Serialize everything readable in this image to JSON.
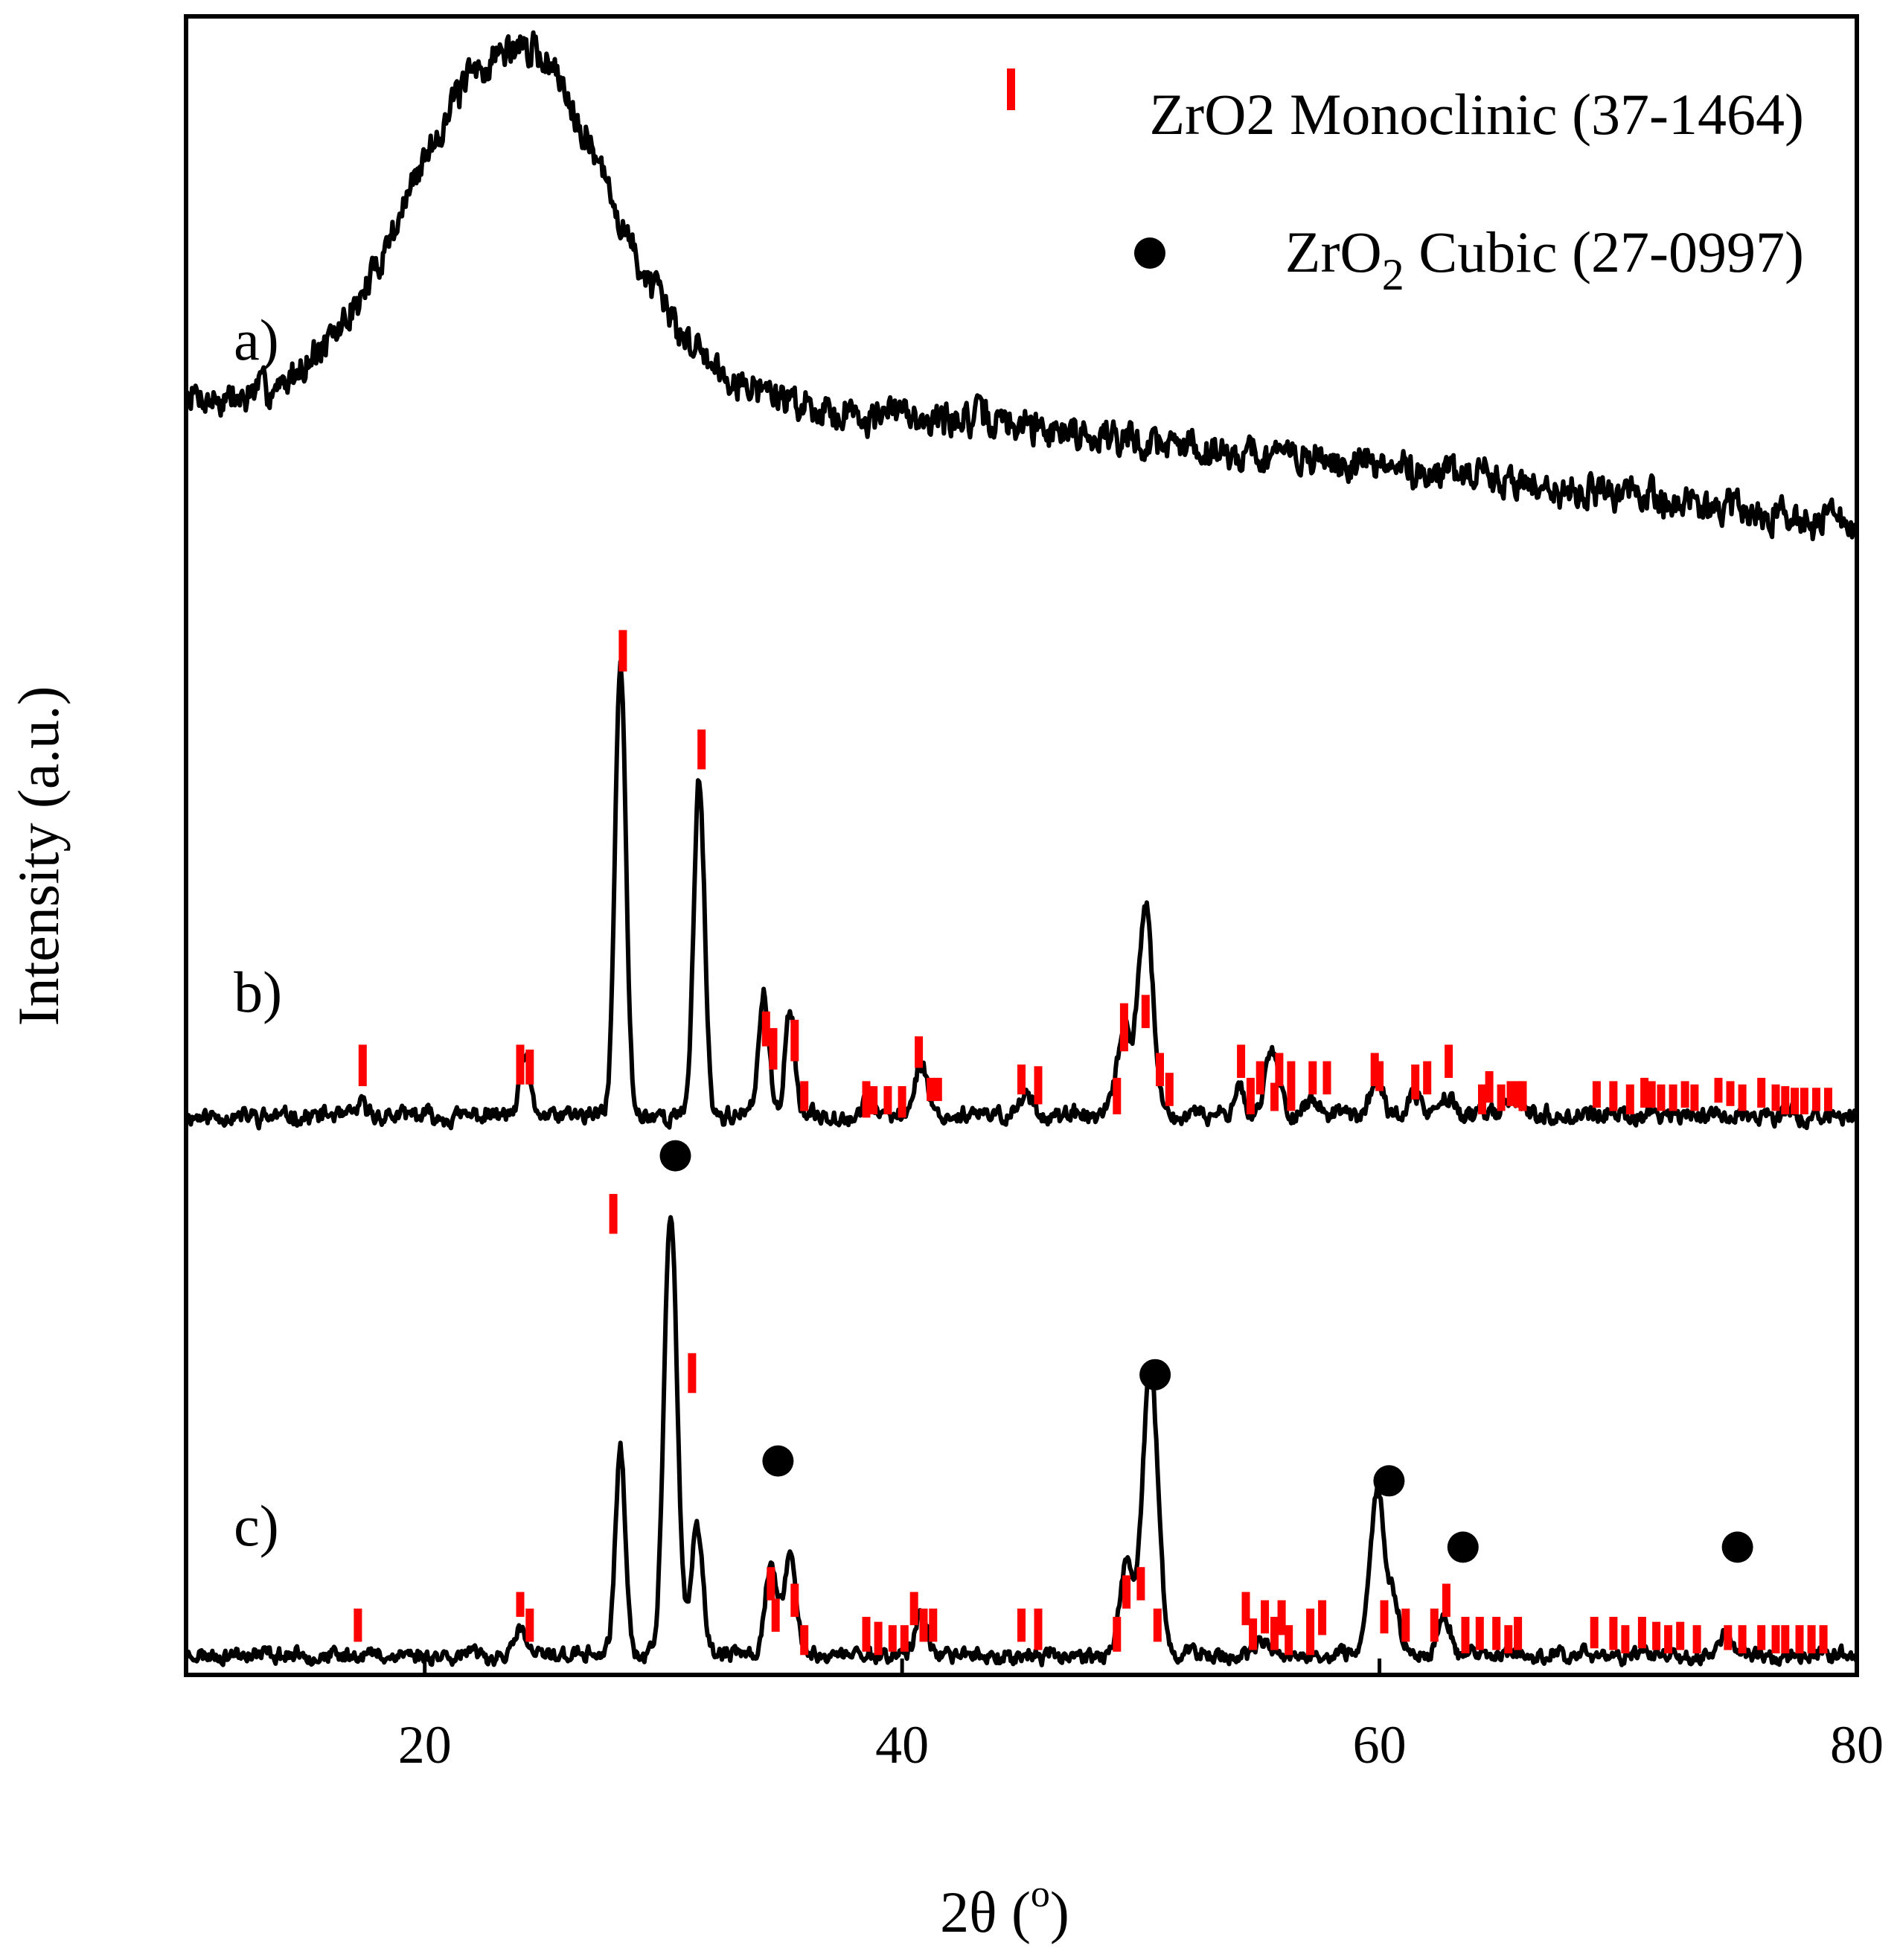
{
  "chart_data": {
    "type": "line",
    "title": "",
    "xlabel": "2θ (",
    "xlabel_sup": "o",
    "xlabel_close": ")",
    "ylabel": "Intensity (a.u.)",
    "xlim": [
      10,
      80
    ],
    "ylim": [
      0,
      100
    ],
    "xticks": [
      20,
      40,
      60,
      80
    ],
    "grid": false,
    "legend_position": "top-right",
    "legend": [
      {
        "marker": "bar",
        "color": "#ff0000",
        "label": "ZrO2 Monoclinic (37-1464)"
      },
      {
        "marker": "dot",
        "color": "#000000",
        "label_main": "ZrO",
        "label_sub": "2",
        "label_rest": " Cubic (27-0997)"
      }
    ],
    "series": [
      {
        "name": "a)",
        "baseline": 69.2,
        "noise_amp": 1.1,
        "seed": 7,
        "background": [
          [
            10,
            77
          ],
          [
            12,
            76.8
          ],
          [
            14,
            77.9
          ],
          [
            16,
            80.2
          ],
          [
            17,
            82.3
          ],
          [
            18,
            85
          ],
          [
            19,
            88.2
          ],
          [
            20,
            91.6
          ],
          [
            21,
            94.4
          ],
          [
            22,
            96.4
          ],
          [
            23,
            97.7
          ],
          [
            24,
            98.2
          ],
          [
            25,
            97.6
          ],
          [
            26,
            95.5
          ],
          [
            27,
            92.1
          ],
          [
            28,
            88.4
          ],
          [
            29,
            85.1
          ],
          [
            30,
            82.2
          ],
          [
            32,
            79.2
          ],
          [
            34,
            77.5
          ],
          [
            36,
            76.6
          ],
          [
            38,
            76.1
          ],
          [
            40,
            75.9
          ],
          [
            42,
            75.8
          ],
          [
            44,
            75.6
          ],
          [
            46,
            75.3
          ],
          [
            48,
            74.8
          ],
          [
            50,
            74.4
          ],
          [
            52,
            74.1
          ],
          [
            55,
            73.6
          ],
          [
            60,
            72.9
          ],
          [
            65,
            72.1
          ],
          [
            70,
            71.2
          ],
          [
            75,
            70.3
          ],
          [
            80,
            69.4
          ]
        ],
        "peaks": []
      },
      {
        "name": "b)",
        "baseline": 33.7,
        "noise_amp": 0.55,
        "seed": 11,
        "background": [
          [
            10,
            33.7
          ],
          [
            80,
            33.7
          ]
        ],
        "peaks": [
          {
            "center": 17.4,
            "height": 0.6,
            "width": 0.3
          },
          {
            "center": 24.2,
            "height": 3.6,
            "width": 0.28
          },
          {
            "center": 28.2,
            "height": 27.2,
            "width": 0.32
          },
          {
            "center": 31.5,
            "height": 20.3,
            "width": 0.32
          },
          {
            "center": 34.2,
            "height": 7.4,
            "width": 0.3
          },
          {
            "center": 35.3,
            "height": 6.5,
            "width": 0.3
          },
          {
            "center": 38.6,
            "height": 1.0,
            "width": 0.3
          },
          {
            "center": 40.8,
            "height": 3.2,
            "width": 0.38
          },
          {
            "center": 45.2,
            "height": 1.4,
            "width": 0.4
          },
          {
            "center": 49.3,
            "height": 5.2,
            "width": 0.42
          },
          {
            "center": 50.2,
            "height": 12.9,
            "width": 0.42
          },
          {
            "center": 54.1,
            "height": 2.0,
            "width": 0.3
          },
          {
            "center": 55.5,
            "height": 3.9,
            "width": 0.42
          },
          {
            "center": 57.2,
            "height": 0.9,
            "width": 0.4
          },
          {
            "center": 59.9,
            "height": 2.2,
            "width": 0.4
          },
          {
            "center": 61.5,
            "height": 1.1,
            "width": 0.4
          },
          {
            "center": 62.9,
            "height": 1.3,
            "width": 0.4
          },
          {
            "center": 65.7,
            "height": 1.0,
            "width": 0.5
          }
        ]
      },
      {
        "name": "c)",
        "baseline": 1.2,
        "noise_amp": 0.5,
        "seed": 23,
        "background": [
          [
            10,
            1.2
          ],
          [
            80,
            1.2
          ]
        ],
        "peaks": [
          {
            "center": 24.0,
            "height": 1.6,
            "width": 0.28
          },
          {
            "center": 28.2,
            "height": 12.4,
            "width": 0.3
          },
          {
            "center": 30.3,
            "height": 26.8,
            "width": 0.38
          },
          {
            "center": 31.4,
            "height": 7.6,
            "width": 0.35
          },
          {
            "center": 34.5,
            "height": 5.4,
            "width": 0.35
          },
          {
            "center": 35.3,
            "height": 6.2,
            "width": 0.35
          },
          {
            "center": 40.8,
            "height": 2.6,
            "width": 0.35
          },
          {
            "center": 49.4,
            "height": 5.2,
            "width": 0.4
          },
          {
            "center": 50.4,
            "height": 17.6,
            "width": 0.45
          },
          {
            "center": 55.0,
            "height": 0.6,
            "width": 0.4
          },
          {
            "center": 59.9,
            "height": 9.9,
            "width": 0.42
          },
          {
            "center": 60.6,
            "height": 3.4,
            "width": 0.35
          },
          {
            "center": 62.7,
            "height": 2.2,
            "width": 0.4
          },
          {
            "center": 74.5,
            "height": 1.3,
            "width": 0.45
          }
        ]
      }
    ],
    "series_labels": [
      {
        "text": "a)",
        "x": 12.0,
        "y": 79.3
      },
      {
        "text": "b)",
        "x": 12.0,
        "y": 40.0
      },
      {
        "text": "c)",
        "x": 12.0,
        "y": 7.8
      }
    ],
    "reference_monoclinic_b": [
      [
        17.4,
        35.5,
        38.0
      ],
      [
        24.0,
        35.6,
        38.0
      ],
      [
        24.4,
        35.6,
        37.7
      ],
      [
        28.3,
        60.5,
        63.0
      ],
      [
        31.6,
        54.6,
        57.0
      ],
      [
        34.3,
        37.9,
        40.0
      ],
      [
        34.6,
        36.5,
        39.0
      ],
      [
        35.5,
        37.0,
        39.5
      ],
      [
        35.9,
        34.0,
        35.8
      ],
      [
        38.5,
        33.6,
        35.8
      ],
      [
        38.8,
        33.8,
        35.5
      ],
      [
        39.4,
        33.8,
        35.5
      ],
      [
        40.0,
        33.6,
        35.5
      ],
      [
        40.7,
        36.6,
        38.5
      ],
      [
        41.2,
        34.6,
        36.0
      ],
      [
        41.5,
        34.6,
        36.0
      ],
      [
        45.0,
        35.0,
        36.8
      ],
      [
        45.7,
        34.4,
        36.7
      ],
      [
        49.0,
        33.8,
        36.0
      ],
      [
        49.3,
        37.6,
        40.5
      ],
      [
        50.2,
        39.0,
        41.0
      ],
      [
        50.8,
        35.5,
        37.5
      ],
      [
        51.2,
        34.3,
        36.3
      ],
      [
        54.2,
        36.0,
        38.0
      ],
      [
        54.6,
        33.8,
        36.0
      ],
      [
        55.0,
        35.0,
        37.0
      ],
      [
        55.6,
        34.0,
        35.7
      ],
      [
        55.8,
        35.5,
        37.5
      ],
      [
        56.3,
        34.0,
        37.0
      ],
      [
        57.2,
        35.0,
        37.0
      ],
      [
        57.8,
        35.0,
        37.0
      ],
      [
        59.8,
        35.5,
        37.5
      ],
      [
        60.0,
        35.2,
        37.0
      ],
      [
        61.5,
        34.7,
        36.8
      ],
      [
        62.0,
        35.0,
        37.0
      ],
      [
        62.9,
        36.0,
        38.0
      ],
      [
        64.3,
        33.8,
        35.6
      ],
      [
        64.6,
        34.5,
        36.4
      ],
      [
        65.1,
        34.0,
        35.6
      ],
      [
        65.5,
        34.3,
        35.8
      ],
      [
        65.8,
        34.2,
        35.8
      ],
      [
        66.0,
        34.0,
        35.8
      ],
      [
        69.1,
        34.2,
        35.8
      ],
      [
        69.8,
        34.0,
        35.8
      ],
      [
        70.5,
        33.8,
        35.6
      ],
      [
        71.1,
        34.2,
        36.0
      ],
      [
        71.4,
        34.2,
        35.8
      ],
      [
        71.8,
        34.0,
        35.6
      ],
      [
        72.3,
        34.0,
        35.6
      ],
      [
        72.8,
        34.2,
        35.8
      ],
      [
        73.2,
        34.0,
        35.6
      ],
      [
        74.2,
        34.5,
        36.0
      ],
      [
        74.7,
        34.3,
        35.8
      ],
      [
        75.2,
        34.0,
        35.6
      ],
      [
        76.0,
        34.2,
        36.0
      ],
      [
        76.6,
        34.0,
        35.6
      ],
      [
        77.0,
        33.8,
        35.5
      ],
      [
        77.4,
        33.8,
        35.4
      ],
      [
        77.8,
        33.8,
        35.4
      ],
      [
        78.3,
        34.0,
        35.4
      ],
      [
        78.8,
        34.0,
        35.4
      ]
    ],
    "reference_monoclinic_c": [
      [
        17.2,
        2.0,
        4.0
      ],
      [
        24.0,
        3.5,
        5.0
      ],
      [
        24.4,
        2.0,
        4.0
      ],
      [
        27.9,
        26.6,
        29.0
      ],
      [
        31.2,
        17.0,
        19.4
      ],
      [
        34.5,
        4.5,
        6.5
      ],
      [
        34.7,
        2.6,
        4.6
      ],
      [
        35.5,
        3.5,
        5.5
      ],
      [
        35.9,
        1.2,
        3.0
      ],
      [
        38.5,
        1.4,
        3.5
      ],
      [
        39.0,
        1.2,
        3.2
      ],
      [
        39.6,
        1.4,
        3.0
      ],
      [
        40.1,
        1.4,
        3.0
      ],
      [
        40.5,
        3.0,
        5.0
      ],
      [
        40.9,
        2.0,
        4.0
      ],
      [
        41.3,
        2.0,
        4.0
      ],
      [
        45.0,
        2.0,
        4.0
      ],
      [
        45.7,
        1.5,
        4.0
      ],
      [
        49.0,
        1.4,
        3.5
      ],
      [
        49.4,
        4.0,
        6.0
      ],
      [
        50.0,
        4.5,
        6.5
      ],
      [
        50.7,
        2.0,
        4.0
      ],
      [
        54.4,
        3.0,
        5.0
      ],
      [
        54.7,
        1.5,
        3.4
      ],
      [
        55.2,
        2.5,
        4.5
      ],
      [
        55.6,
        1.5,
        3.5
      ],
      [
        55.9,
        2.4,
        4.5
      ],
      [
        56.2,
        1.2,
        3.0
      ],
      [
        57.1,
        1.2,
        4.0
      ],
      [
        57.6,
        2.4,
        4.5
      ],
      [
        60.2,
        2.5,
        4.5
      ],
      [
        61.1,
        2.0,
        4.0
      ],
      [
        62.3,
        2.0,
        4.0
      ],
      [
        62.8,
        3.5,
        5.5
      ],
      [
        63.6,
        1.3,
        3.5
      ],
      [
        64.2,
        1.5,
        3.5
      ],
      [
        64.9,
        1.5,
        3.5
      ],
      [
        65.4,
        1.3,
        3.0
      ],
      [
        65.8,
        1.5,
        3.5
      ],
      [
        69.0,
        1.6,
        3.5
      ],
      [
        69.8,
        1.5,
        3.5
      ],
      [
        70.3,
        1.3,
        3.0
      ],
      [
        71.0,
        1.6,
        3.5
      ],
      [
        71.6,
        1.5,
        3.2
      ],
      [
        72.1,
        1.3,
        3.0
      ],
      [
        72.6,
        1.5,
        3.2
      ],
      [
        73.3,
        1.3,
        3.0
      ],
      [
        74.6,
        1.5,
        3.0
      ],
      [
        75.2,
        1.3,
        3.0
      ],
      [
        76.0,
        1.5,
        3.0
      ],
      [
        76.6,
        1.3,
        3.0
      ],
      [
        77.0,
        1.3,
        3.0
      ],
      [
        77.6,
        1.3,
        3.0
      ],
      [
        78.1,
        1.3,
        3.0
      ],
      [
        78.6,
        1.3,
        3.0
      ]
    ],
    "reference_cubic_c": [
      [
        30.5,
        31.3
      ],
      [
        34.8,
        12.9
      ],
      [
        50.6,
        18.1
      ],
      [
        60.4,
        11.7
      ],
      [
        63.5,
        7.7
      ],
      [
        75.0,
        7.7
      ]
    ]
  }
}
